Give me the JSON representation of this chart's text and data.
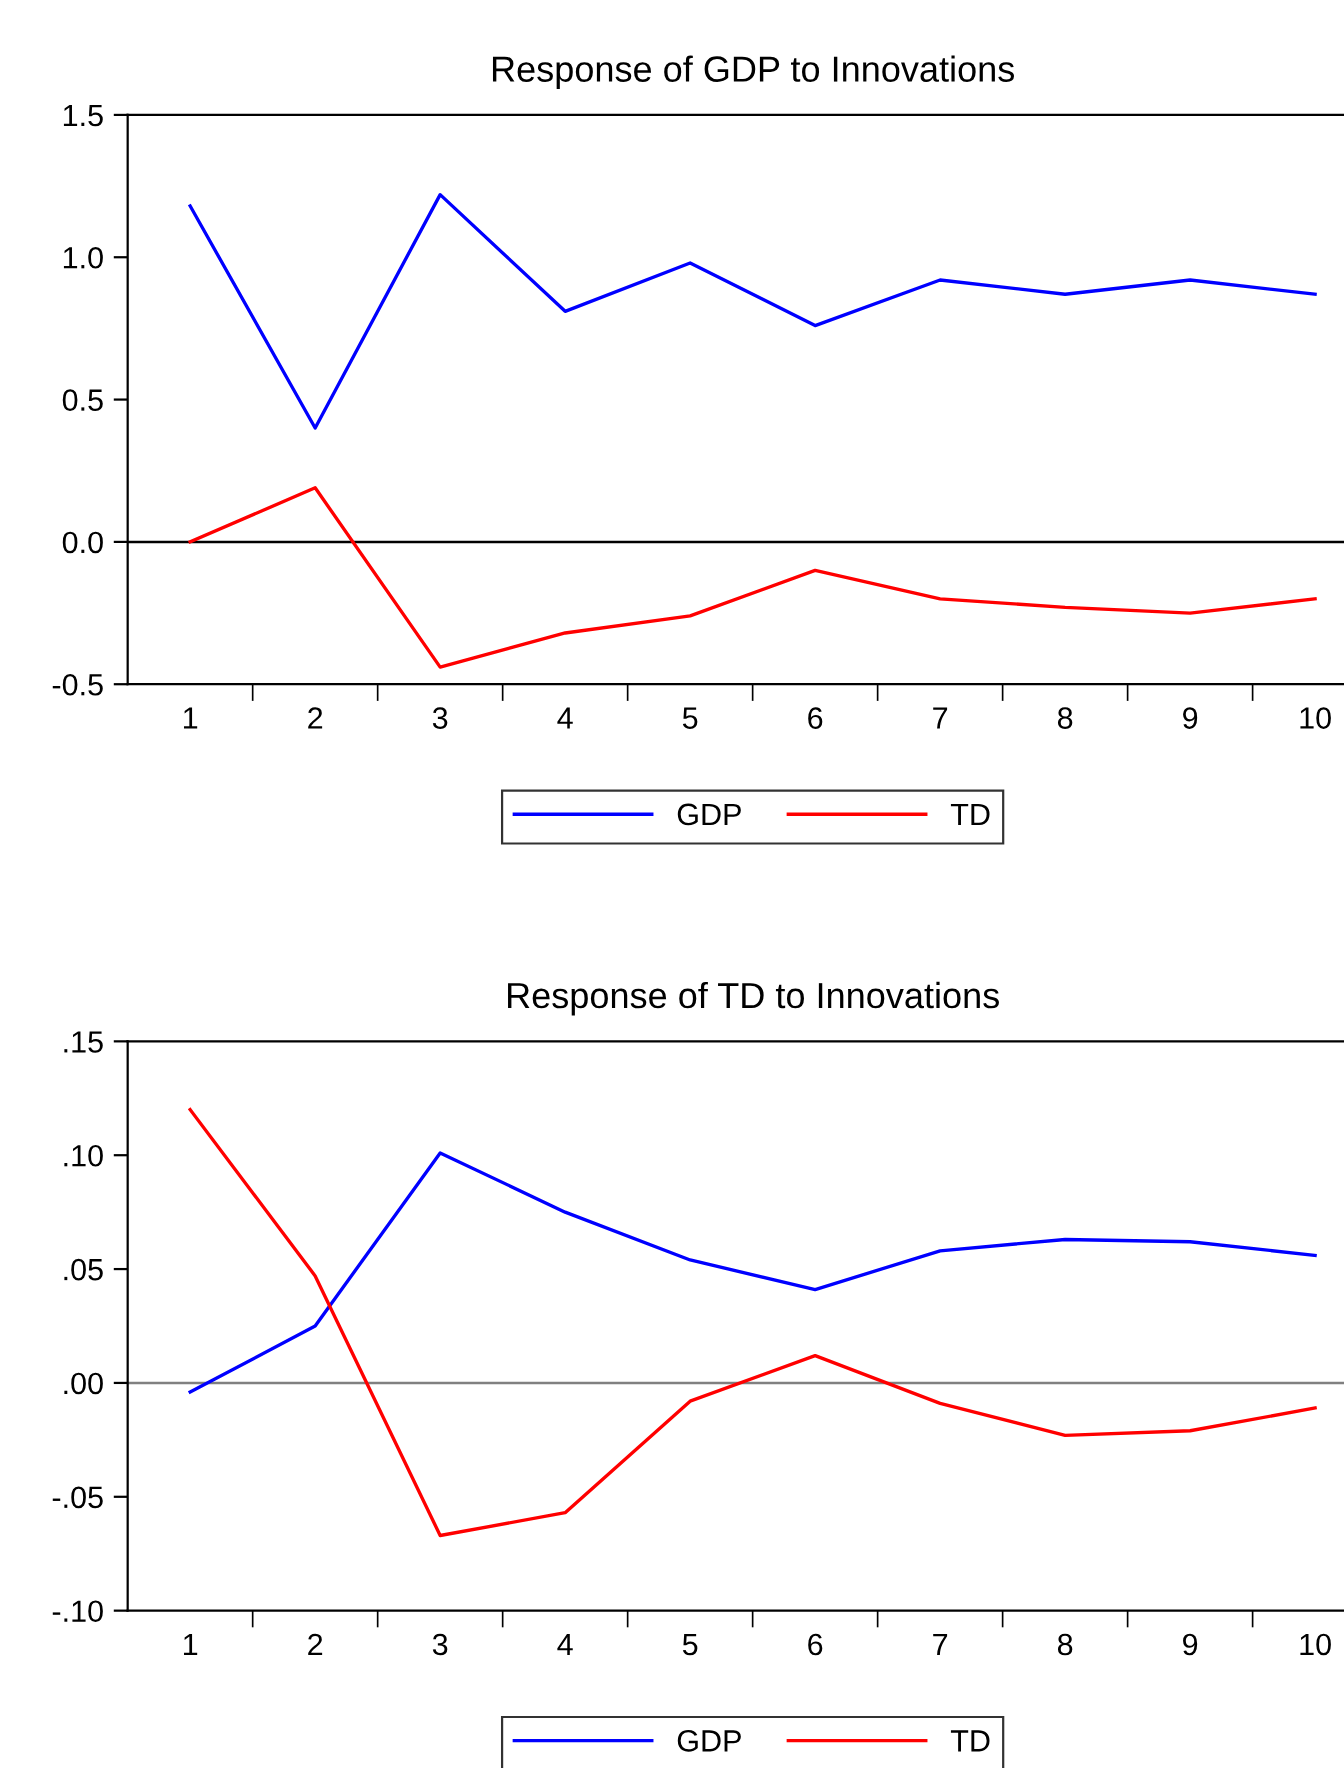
{
  "chart_data": [
    {
      "type": "line",
      "title": "Response of GDP to Innovations",
      "categories": [
        "1",
        "2",
        "3",
        "4",
        "5",
        "6",
        "7",
        "8",
        "9",
        "10"
      ],
      "series": [
        {
          "name": "GDP",
          "color": "#0000ff",
          "values": [
            1.18,
            0.4,
            1.22,
            0.81,
            0.98,
            0.76,
            0.92,
            0.87,
            0.92,
            0.87
          ]
        },
        {
          "name": "TD",
          "color": "#ff0000",
          "values": [
            0.0,
            0.19,
            -0.44,
            -0.32,
            -0.26,
            -0.1,
            -0.2,
            -0.23,
            -0.25,
            -0.2
          ]
        }
      ],
      "ylim": [
        -0.5,
        1.5
      ],
      "yticks": [
        {
          "value": -0.5,
          "label": "-0.5"
        },
        {
          "value": 0.0,
          "label": "0.0"
        },
        {
          "value": 0.5,
          "label": "0.5"
        },
        {
          "value": 1.0,
          "label": "1.0"
        },
        {
          "value": 1.5,
          "label": "1.5"
        }
      ],
      "ref_lines": [
        {
          "axis": "y",
          "value": 0,
          "color": "#000000"
        }
      ],
      "legend": "bottom",
      "grid": false,
      "marker": "none",
      "line_style": "solid"
    },
    {
      "type": "line",
      "title": "Response of TD to Innovations",
      "categories": [
        "1",
        "2",
        "3",
        "4",
        "5",
        "6",
        "7",
        "8",
        "9",
        "10"
      ],
      "series": [
        {
          "name": "GDP",
          "color": "#0000ff",
          "values": [
            -0.004,
            0.025,
            0.101,
            0.075,
            0.054,
            0.041,
            0.058,
            0.063,
            0.062,
            0.056
          ]
        },
        {
          "name": "TD",
          "color": "#ff0000",
          "values": [
            0.12,
            0.047,
            -0.067,
            -0.057,
            -0.008,
            0.012,
            -0.009,
            -0.023,
            -0.021,
            -0.011
          ]
        }
      ],
      "ylim": [
        -0.1,
        0.15
      ],
      "yticks": [
        {
          "value": -0.1,
          "label": "-.10"
        },
        {
          "value": -0.05,
          "label": "-.05"
        },
        {
          "value": 0.0,
          "label": ".00"
        },
        {
          "value": 0.05,
          "label": ".05"
        },
        {
          "value": 0.1,
          "label": ".10"
        },
        {
          "value": 0.15,
          "label": ".15"
        }
      ],
      "ref_lines": [
        {
          "axis": "y",
          "value": 0,
          "color": "#808080"
        }
      ],
      "legend": "bottom",
      "grid": false,
      "marker": "none",
      "line_style": "solid"
    }
  ]
}
